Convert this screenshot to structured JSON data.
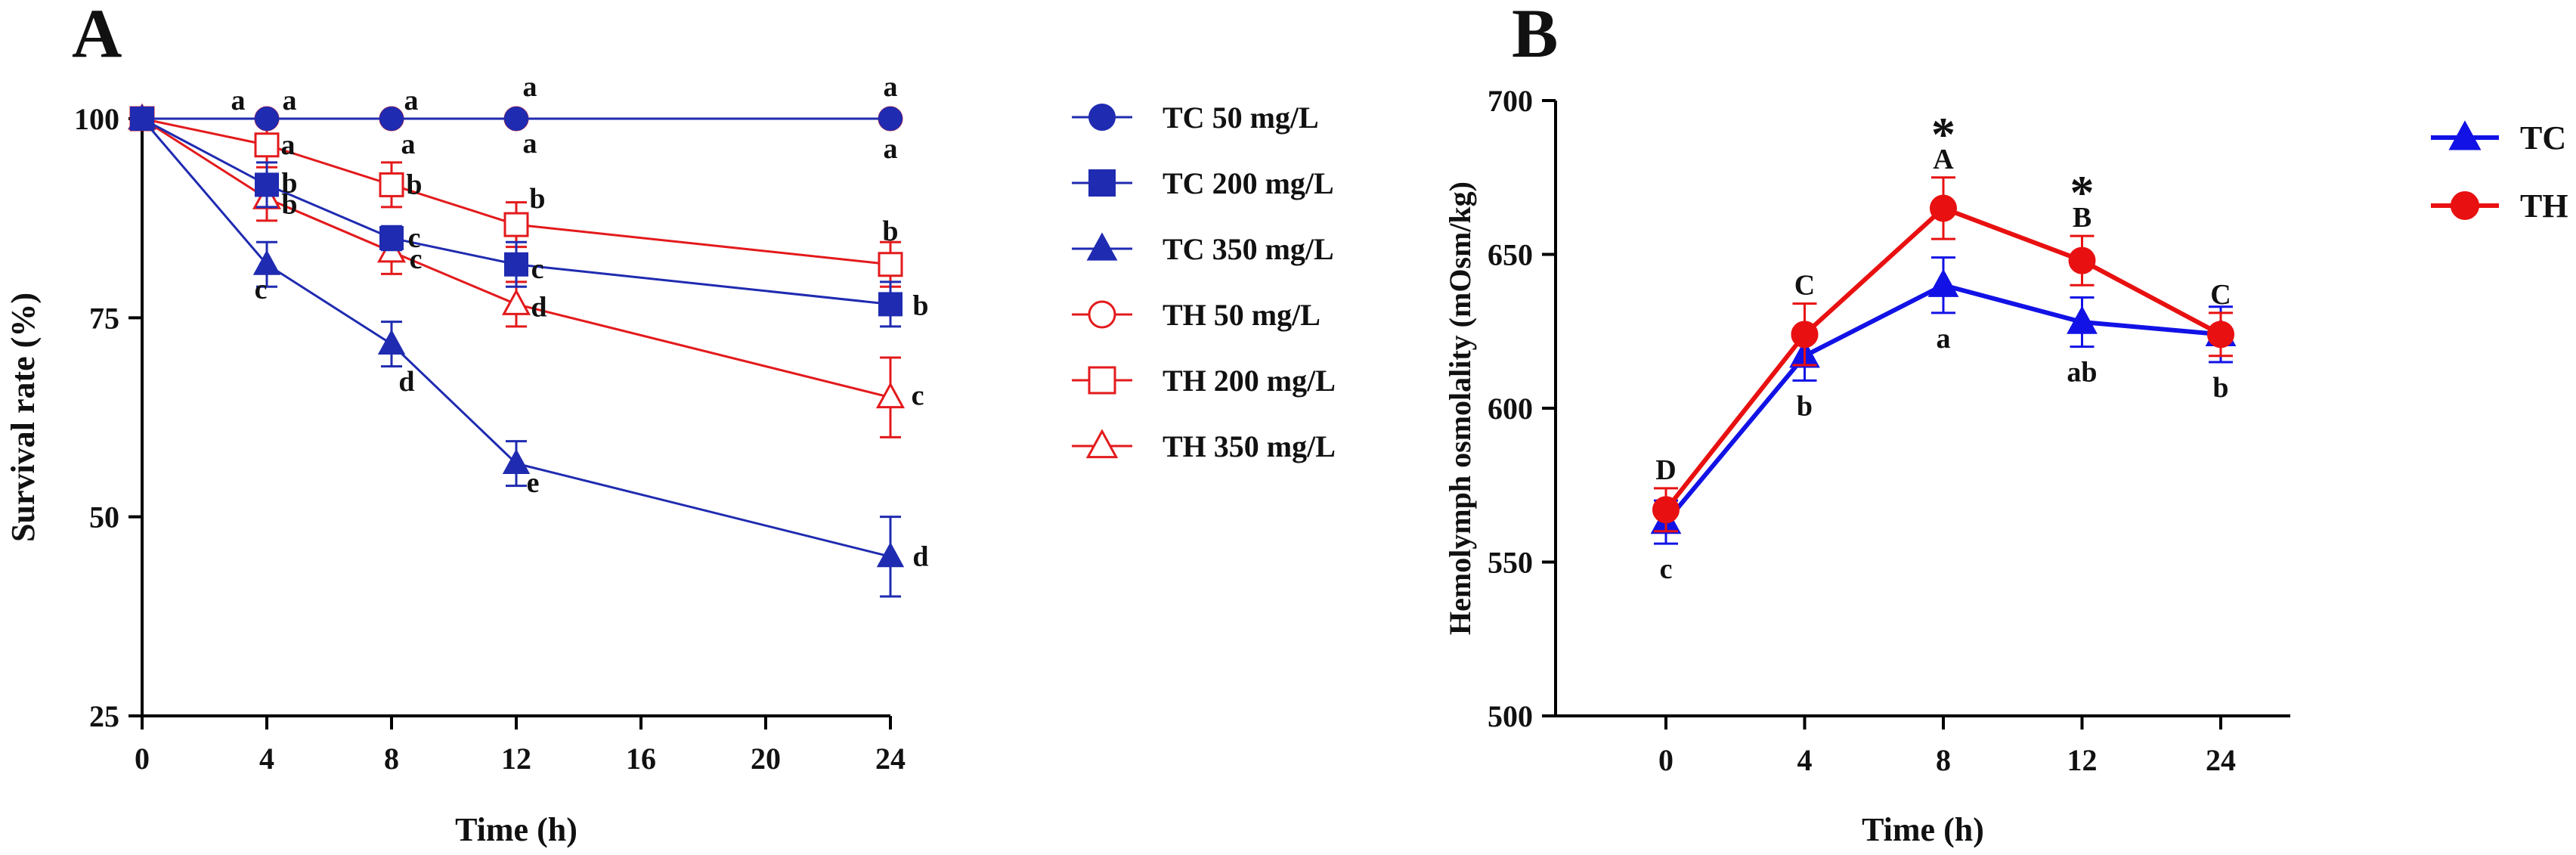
{
  "chart_data": [
    {
      "panel": "A",
      "type": "line",
      "xlabel": "Time (h)",
      "ylabel": "Survival rate (%)",
      "xlim": [
        0,
        24
      ],
      "ylim": [
        25,
        100
      ],
      "xticks": [
        0,
        4,
        8,
        12,
        16,
        20,
        24
      ],
      "yticks": [
        25,
        50,
        75,
        100
      ],
      "legend_position": "right",
      "series": [
        {
          "name": "TC 50 mg/L",
          "color": "#1f2bb0",
          "marker": "circle-filled",
          "x": [
            0,
            4,
            8,
            12,
            24
          ],
          "values": [
            100,
            100,
            100,
            100,
            100
          ],
          "error": [
            0,
            0,
            0,
            0,
            0
          ],
          "letters": [
            "",
            "a",
            "a",
            "a",
            "a"
          ]
        },
        {
          "name": "TC 200 mg/L",
          "color": "#1f2bb0",
          "marker": "square-filled",
          "x": [
            0,
            4,
            8,
            12,
            24
          ],
          "values": [
            100,
            91.7,
            85,
            81.7,
            76.7
          ],
          "error": [
            0,
            2.8,
            1.5,
            2.8,
            2.8
          ],
          "letters": [
            "",
            "b",
            "c",
            "c",
            "b"
          ]
        },
        {
          "name": "TC 350 mg/L",
          "color": "#1f2bb0",
          "marker": "triangle-filled",
          "x": [
            0,
            4,
            8,
            12,
            24
          ],
          "values": [
            100,
            81.7,
            71.7,
            56.7,
            45
          ],
          "error": [
            0,
            2.8,
            2.8,
            2.8,
            5
          ],
          "letters": [
            "",
            "c",
            "d",
            "e",
            "d"
          ]
        },
        {
          "name": "TH 50 mg/L",
          "color": "#e31a1c",
          "marker": "circle-open",
          "x": [
            0,
            4,
            8,
            12,
            24
          ],
          "values": [
            100,
            100,
            100,
            100,
            100
          ],
          "error": [
            0,
            0,
            0,
            0,
            0
          ],
          "letters": [
            "",
            "a",
            "a",
            "a",
            "a"
          ]
        },
        {
          "name": "TH 200 mg/L",
          "color": "#e31a1c",
          "marker": "square-open",
          "x": [
            0,
            4,
            8,
            12,
            24
          ],
          "values": [
            100,
            96.7,
            91.7,
            86.7,
            81.7
          ],
          "error": [
            0,
            2.8,
            2.8,
            2.8,
            2.8
          ],
          "letters": [
            "",
            "a",
            "b",
            "b",
            "b"
          ]
        },
        {
          "name": "TH 350 mg/L",
          "color": "#e31a1c",
          "marker": "triangle-open",
          "x": [
            0,
            4,
            8,
            12,
            24
          ],
          "values": [
            100,
            90,
            83.3,
            76.7,
            65
          ],
          "error": [
            0,
            2.8,
            2.8,
            2.8,
            5
          ],
          "letters": [
            "",
            "b",
            "c",
            "d",
            "c"
          ]
        }
      ]
    },
    {
      "panel": "B",
      "type": "line",
      "xlabel": "Time (h)",
      "ylabel": "Hemolymph osmolality (mOsm/kg)",
      "categories": [
        "0",
        "4",
        "8",
        "12",
        "24"
      ],
      "ylim": [
        500,
        700
      ],
      "yticks": [
        500,
        550,
        600,
        650,
        700
      ],
      "legend_position": "top-right",
      "significance_marker": "*",
      "series": [
        {
          "name": "TC",
          "color": "#1212e6",
          "marker": "triangle-filled",
          "values": [
            563,
            617,
            640,
            628,
            624
          ],
          "error": [
            7,
            8,
            9,
            8,
            9
          ],
          "letters": [
            "c",
            "b",
            "a",
            "ab",
            "b"
          ]
        },
        {
          "name": "TH",
          "color": "#e81010",
          "marker": "circle-filled",
          "values": [
            567,
            624,
            665,
            648,
            624
          ],
          "error": [
            7,
            10,
            10,
            8,
            7
          ],
          "letters": [
            "D",
            "C",
            "A",
            "B",
            "C"
          ],
          "star": [
            false,
            false,
            true,
            true,
            false
          ]
        }
      ]
    }
  ]
}
